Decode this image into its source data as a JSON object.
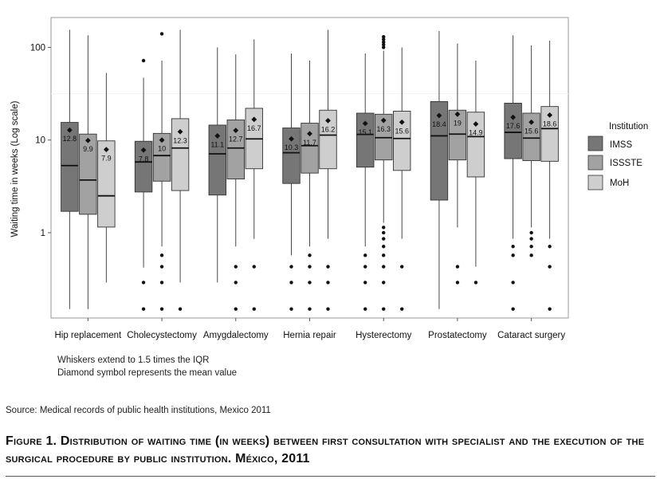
{
  "chart_data": {
    "type": "boxplot",
    "yscale": "log",
    "ylabel": "Waiting time in weeks (Log scale)",
    "ylim": [
      0.12,
      210
    ],
    "yticks": [
      1,
      10,
      100
    ],
    "ytick_labels": [
      "1",
      "10",
      "100"
    ],
    "categories": [
      "Hip replacement",
      "Cholecystectomy",
      "Amygdalectomy",
      "Hernia repair",
      "Hysterectomy",
      "Prostatectomy",
      "Cataract surgery"
    ],
    "legend": {
      "title": "Institution",
      "position": "right",
      "items": [
        {
          "name": "IMSS",
          "color": "#767676"
        },
        {
          "name": "ISSSTE",
          "color": "#a2a2a2"
        },
        {
          "name": "MoH",
          "color": "#cecece"
        }
      ]
    },
    "series": [
      {
        "name": "IMSS",
        "color": "#767676",
        "boxes": [
          {
            "whisker_low": 0.15,
            "q1": 1.7,
            "median": 5.3,
            "q3": 15.5,
            "whisker_high": 155,
            "mean": 12.8,
            "mean_label": "12.8",
            "outliers": []
          },
          {
            "whisker_low": 0.42,
            "q1": 2.75,
            "median": 5.8,
            "q3": 9.7,
            "whisker_high": 47,
            "mean": 7.8,
            "mean_label": "7.8",
            "outliers": [
              0.15,
              0.29,
              72
            ]
          },
          {
            "whisker_low": 0.29,
            "q1": 2.55,
            "median": 7.1,
            "q3": 14.5,
            "whisker_high": 100,
            "mean": 11.1,
            "mean_label": "11.1",
            "outliers": []
          },
          {
            "whisker_low": 0.57,
            "q1": 3.4,
            "median": 7.3,
            "q3": 13.5,
            "whisker_high": 86,
            "mean": 10.3,
            "mean_label": "10.3",
            "outliers": [
              0.15,
              0.29,
              0.43
            ]
          },
          {
            "whisker_low": 0.71,
            "q1": 5.1,
            "median": 11.5,
            "q3": 19.5,
            "whisker_high": 86,
            "mean": 15.1,
            "mean_label": "15.1",
            "outliers": [
              0.15,
              0.29,
              0.43,
              0.57
            ]
          },
          {
            "whisker_low": 0.15,
            "q1": 2.25,
            "median": 11.1,
            "q3": 26,
            "whisker_high": 150,
            "mean": 18.4,
            "mean_label": "18.4",
            "outliers": []
          },
          {
            "whisker_low": 0.86,
            "q1": 6.3,
            "median": 12.1,
            "q3": 25,
            "whisker_high": 135,
            "mean": 17.6,
            "mean_label": "17.6",
            "outliers": [
              0.15,
              0.29,
              0.57,
              0.71
            ]
          }
        ]
      },
      {
        "name": "ISSSTE",
        "color": "#a2a2a2",
        "boxes": [
          {
            "whisker_low": 0.15,
            "q1": 1.58,
            "median": 3.7,
            "q3": 11.6,
            "whisker_high": 135,
            "mean": 9.9,
            "mean_label": "9.9",
            "outliers": []
          },
          {
            "whisker_low": 0.71,
            "q1": 3.6,
            "median": 6.8,
            "q3": 11.8,
            "whisker_high": 72,
            "mean": 10,
            "mean_label": "10",
            "outliers": [
              0.15,
              0.29,
              0.43,
              0.57,
              140
            ]
          },
          {
            "whisker_low": 0.71,
            "q1": 3.8,
            "median": 8.2,
            "q3": 16.5,
            "whisker_high": 84,
            "mean": 12.7,
            "mean_label": "12.7",
            "outliers": [
              0.15,
              0.29,
              0.43
            ]
          },
          {
            "whisker_low": 0.71,
            "q1": 4.4,
            "median": 8.7,
            "q3": 15.2,
            "whisker_high": 72,
            "mean": 11.7,
            "mean_label": "11.7",
            "outliers": [
              0.15,
              0.29,
              0.43,
              0.57
            ]
          },
          {
            "whisker_low": 1.28,
            "q1": 6.1,
            "median": 10.6,
            "q3": 19,
            "whisker_high": 92,
            "mean": 16.3,
            "mean_label": "16.3",
            "outliers": [
              0.15,
              0.29,
              0.43,
              0.57,
              0.71,
              0.86,
              1.0,
              1.14,
              100,
              107,
              114,
              122,
              130
            ]
          },
          {
            "whisker_low": 1.14,
            "q1": 6.1,
            "median": 11.6,
            "q3": 21,
            "whisker_high": 110,
            "mean": 19,
            "mean_label": "19",
            "outliers": [
              0.29,
              0.43
            ]
          },
          {
            "whisker_low": 1.14,
            "q1": 6.0,
            "median": 10.5,
            "q3": 19.5,
            "whisker_high": 105,
            "mean": 15.6,
            "mean_label": "15.6",
            "outliers": [
              0.57,
              0.71,
              0.86,
              1.0
            ]
          }
        ]
      },
      {
        "name": "MoH",
        "color": "#cecece",
        "boxes": [
          {
            "whisker_low": 0.29,
            "q1": 1.15,
            "median": 2.5,
            "q3": 9.8,
            "whisker_high": 53,
            "mean": 7.9,
            "mean_label": "7.9",
            "outliers": []
          },
          {
            "whisker_low": 0.29,
            "q1": 2.85,
            "median": 8.2,
            "q3": 17,
            "whisker_high": 155,
            "mean": 12.3,
            "mean_label": "12.3",
            "outliers": [
              0.15
            ]
          },
          {
            "whisker_low": 0.86,
            "q1": 4.9,
            "median": 10.3,
            "q3": 22,
            "whisker_high": 122,
            "mean": 16.7,
            "mean_label": "16.7",
            "outliers": [
              0.15,
              0.43
            ]
          },
          {
            "whisker_low": 0.86,
            "q1": 4.9,
            "median": 11.3,
            "q3": 21,
            "whisker_high": 155,
            "mean": 16.2,
            "mean_label": "16.2",
            "outliers": [
              0.15,
              0.29,
              0.43
            ]
          },
          {
            "whisker_low": 0.86,
            "q1": 4.7,
            "median": 10.4,
            "q3": 20.5,
            "whisker_high": 100,
            "mean": 15.6,
            "mean_label": "15.6",
            "outliers": [
              0.15,
              0.43
            ]
          },
          {
            "whisker_low": 0.43,
            "q1": 4.0,
            "median": 10.9,
            "q3": 20,
            "whisker_high": 72,
            "mean": 14.9,
            "mean_label": "14.9",
            "outliers": [
              0.29
            ]
          },
          {
            "whisker_low": 0.86,
            "q1": 5.9,
            "median": 13.3,
            "q3": 23,
            "whisker_high": 118,
            "mean": 18.6,
            "mean_label": "18.6",
            "outliers": [
              0.15,
              0.43,
              0.71
            ]
          }
        ]
      }
    ],
    "annotations": [
      "Whiskers extend to 1.5 times the IQR",
      "Diamond symbol represents the mean value"
    ]
  },
  "source": "Source: Medical records of public health institutions, Mexico 2011",
  "caption": "Figure 1. Distribution of waiting time (in weeks) between first consultation with specialist and the execution of the surgical procedure by public institution. México, 2011"
}
